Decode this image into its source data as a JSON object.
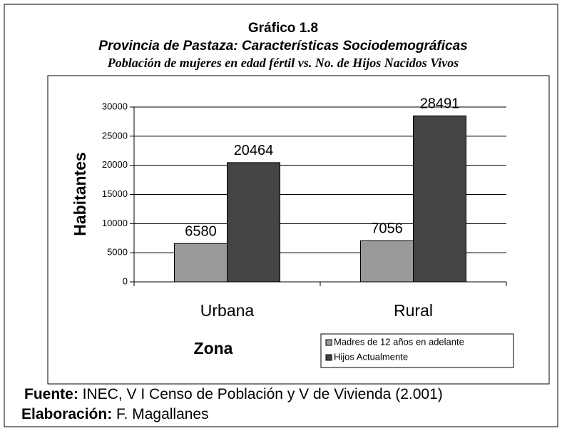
{
  "chart_data": {
    "type": "bar",
    "title": "Gráfico 1.8",
    "subtitle": "Provincia de Pastaza: Características Sociodemográficas",
    "subtitle2": "Población de mujeres en edad fértil vs. No. de Hijos Nacidos Vivos",
    "categories": [
      "Urbana",
      "Rural"
    ],
    "series": [
      {
        "name": "Madres de 12 años en adelante",
        "color": "#999999",
        "values": [
          6580,
          7056
        ]
      },
      {
        "name": "Hijos Actualmente",
        "color": "#444444",
        "values": [
          20464,
          28491
        ]
      }
    ],
    "ylabel": "Habitantes",
    "xlabel": "Zona",
    "ylim": [
      0,
      30000
    ],
    "yticks": [
      0,
      5000,
      10000,
      15000,
      20000,
      25000,
      30000
    ],
    "grid": true,
    "legend": "lower right"
  },
  "footer": {
    "source_label": "Fuente:",
    "source": "INEC, V I Censo de Población y V de Vivienda (2.001)",
    "credit_label": "Elaboración:",
    "credit": "F. Magallanes"
  }
}
